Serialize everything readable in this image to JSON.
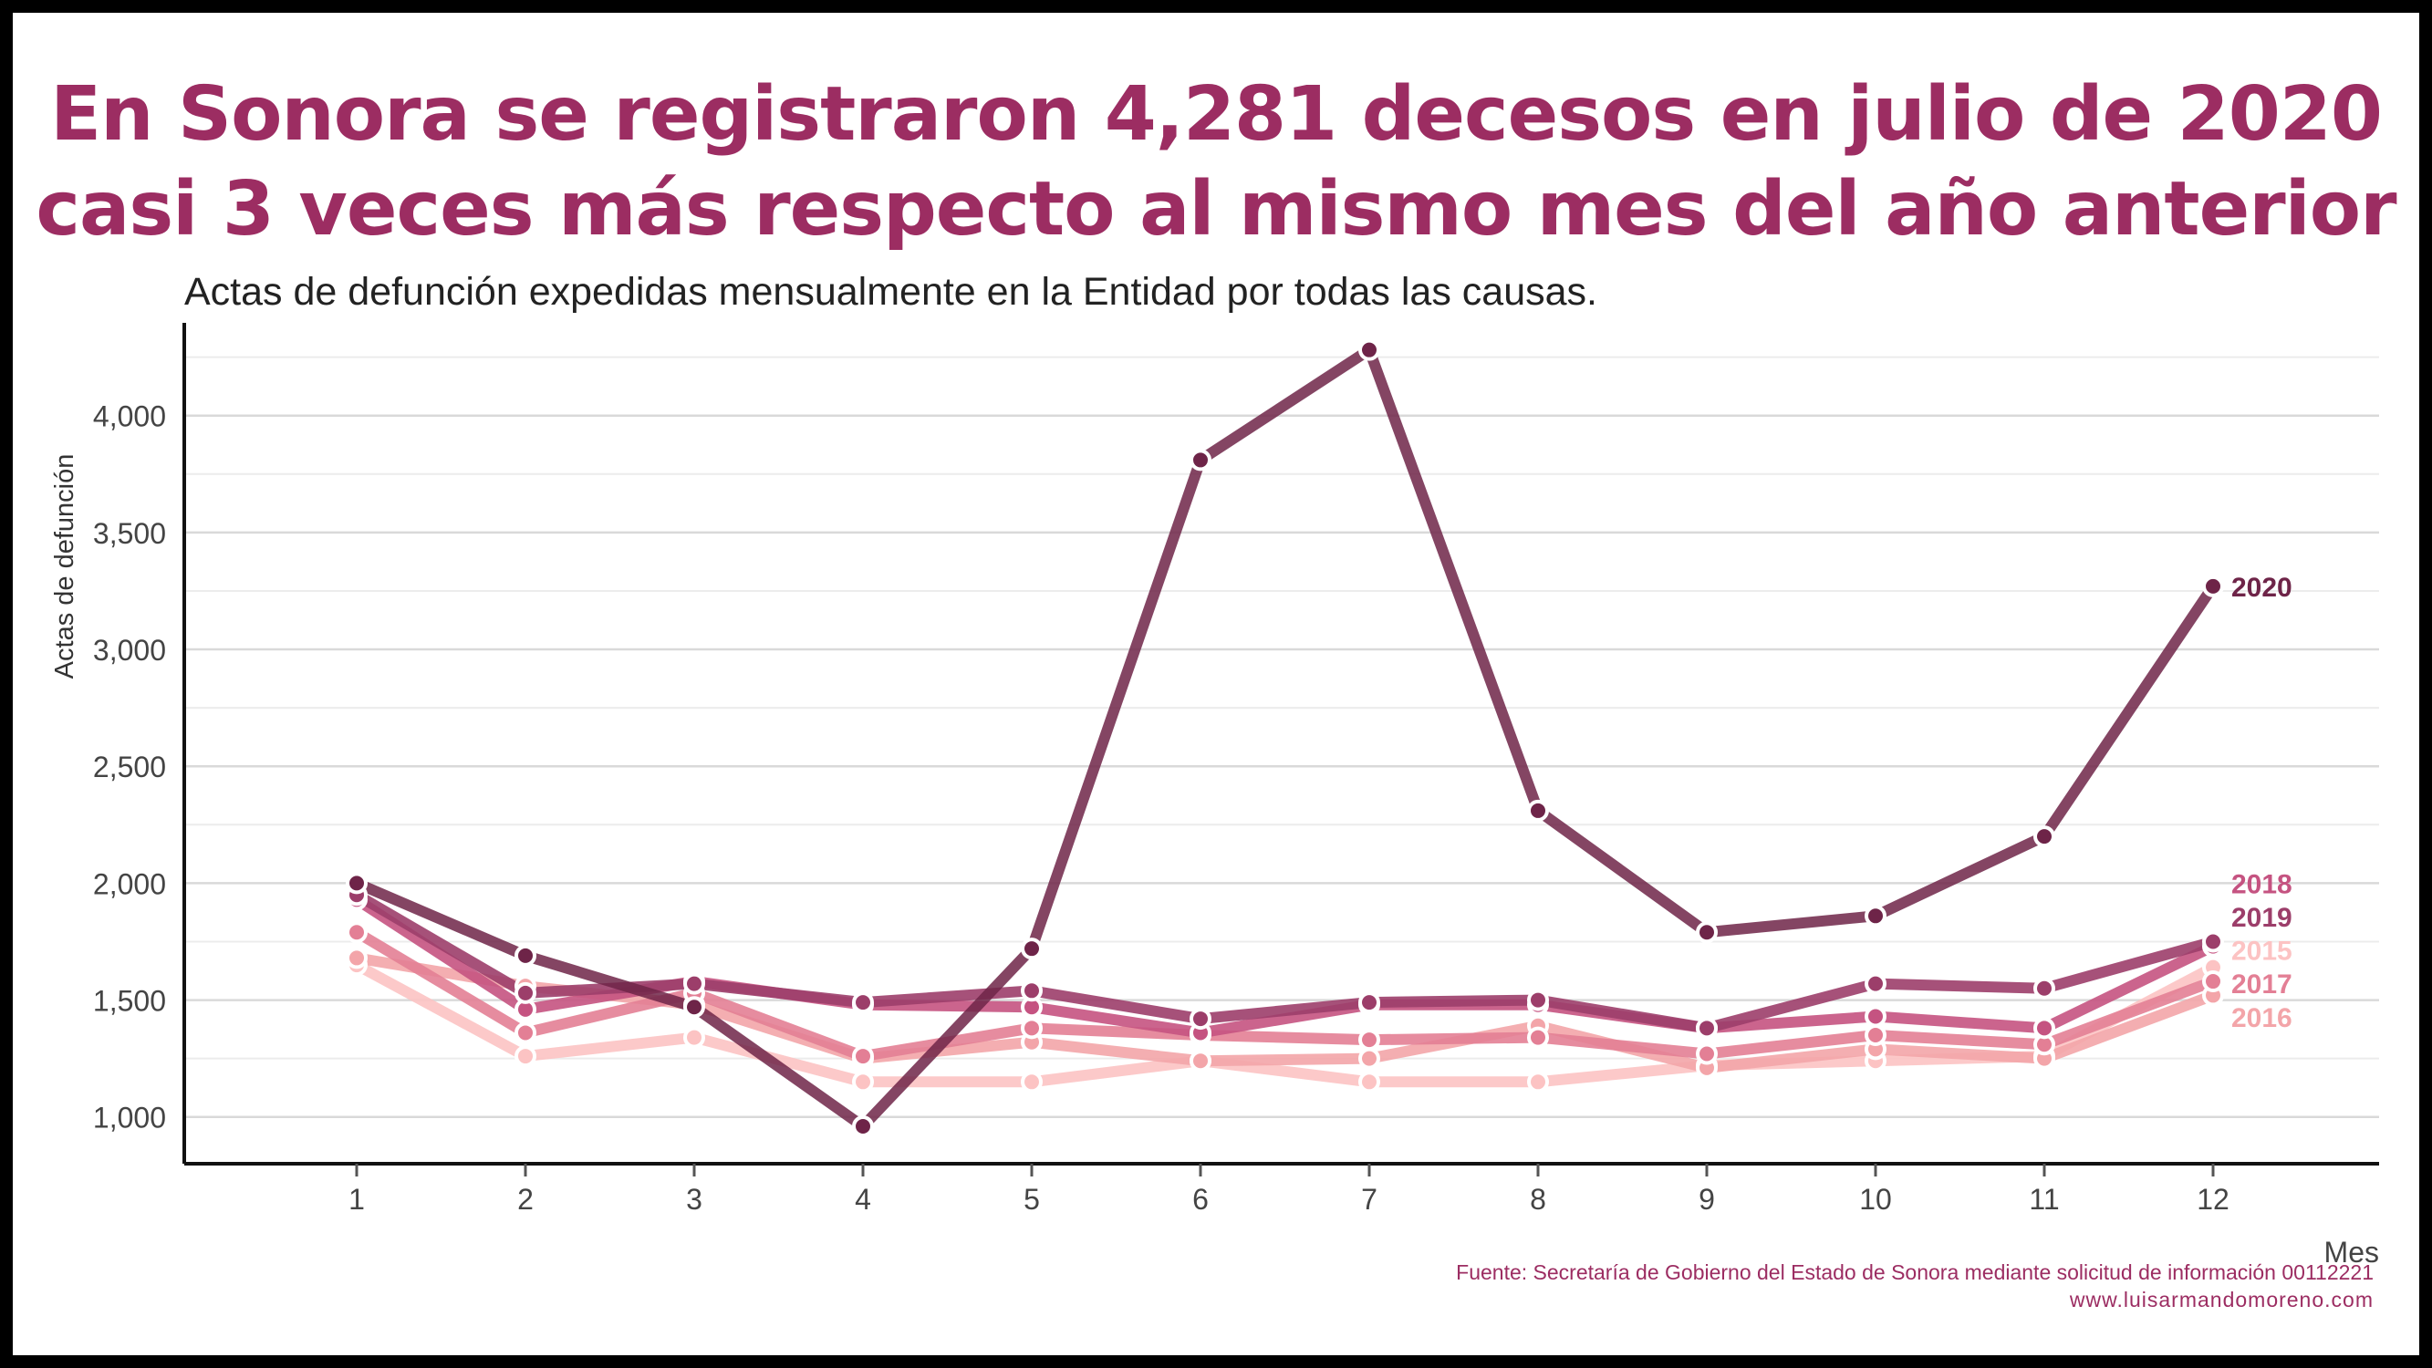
{
  "header": {
    "title_line1": "En Sonora se registraron 4,281 decesos en julio de 2020",
    "title_line2": "casi 3 veces más respecto al mismo mes del año anterior",
    "subtitle": "Actas de defunción expedidas mensualmente en la Entidad por todas las causas."
  },
  "footer": {
    "source": "Fuente: Secretaría de Gobierno del Estado de Sonora mediante solicitud de información 00112221",
    "website": "www.luisarmandomoreno.com"
  },
  "colors": {
    "title": "#9c2d62",
    "2015": "#fcc3c3",
    "2016": "#f3a5a9",
    "2017": "#e37f95",
    "2018": "#c55381",
    "2019": "#9c3e6a",
    "2020": "#6e2448"
  },
  "chart_data": {
    "type": "line",
    "title": "En Sonora se registraron 4,281 decesos en julio de 2020 casi 3 veces más respecto al mismo mes del año anterior",
    "subtitle": "Actas de defunción expedidas mensualmente en la Entidad por todas las causas.",
    "xlabel": "Mes",
    "ylabel": "Actas de defunción",
    "x": [
      1,
      2,
      3,
      4,
      5,
      6,
      7,
      8,
      9,
      10,
      11,
      12
    ],
    "xticks": [
      "1",
      "2",
      "3",
      "4",
      "5",
      "6",
      "7",
      "8",
      "9",
      "10",
      "11",
      "12"
    ],
    "xlim": [
      0,
      13
    ],
    "ylim": [
      800,
      4350
    ],
    "yticks": [
      1000,
      1500,
      2000,
      2500,
      3000,
      3500,
      4000
    ],
    "ytick_labels": [
      "1,000",
      "1,500",
      "2,000",
      "2,500",
      "3,000",
      "3,500",
      "4,000"
    ],
    "grid": "horizontal",
    "legend": "direct labels at right end of lines",
    "series": [
      {
        "name": "2015",
        "color": "#fcc3c3",
        "values": [
          1650,
          1260,
          1340,
          1150,
          1150,
          1240,
          1150,
          1150,
          1220,
          1240,
          1260,
          1640
        ]
      },
      {
        "name": "2016",
        "color": "#f3a5a9",
        "values": [
          1680,
          1560,
          1480,
          1250,
          1320,
          1240,
          1250,
          1390,
          1210,
          1290,
          1250,
          1520
        ]
      },
      {
        "name": "2017",
        "color": "#e37f95",
        "values": [
          1790,
          1360,
          1530,
          1260,
          1380,
          1350,
          1330,
          1340,
          1270,
          1350,
          1310,
          1580
        ]
      },
      {
        "name": "2018",
        "color": "#c55381",
        "values": [
          1930,
          1460,
          1580,
          1480,
          1470,
          1360,
          1480,
          1480,
          1380,
          1430,
          1380,
          1730
        ]
      },
      {
        "name": "2019",
        "color": "#9c3e6a",
        "values": [
          1950,
          1530,
          1570,
          1490,
          1540,
          1420,
          1490,
          1500,
          1380,
          1570,
          1550,
          1750
        ]
      },
      {
        "name": "2020",
        "color": "#6e2448",
        "values": [
          2000,
          1690,
          1470,
          960,
          1720,
          3810,
          4281,
          2310,
          1790,
          1860,
          2200,
          3270
        ]
      }
    ],
    "end_labels": [
      {
        "name": "2020",
        "value": 3270
      },
      {
        "name": "2018",
        "value": 2000
      },
      {
        "name": "2019",
        "value": 1857
      },
      {
        "name": "2015",
        "value": 1715
      },
      {
        "name": "2017",
        "value": 1572
      },
      {
        "name": "2016",
        "value": 1429
      }
    ]
  }
}
